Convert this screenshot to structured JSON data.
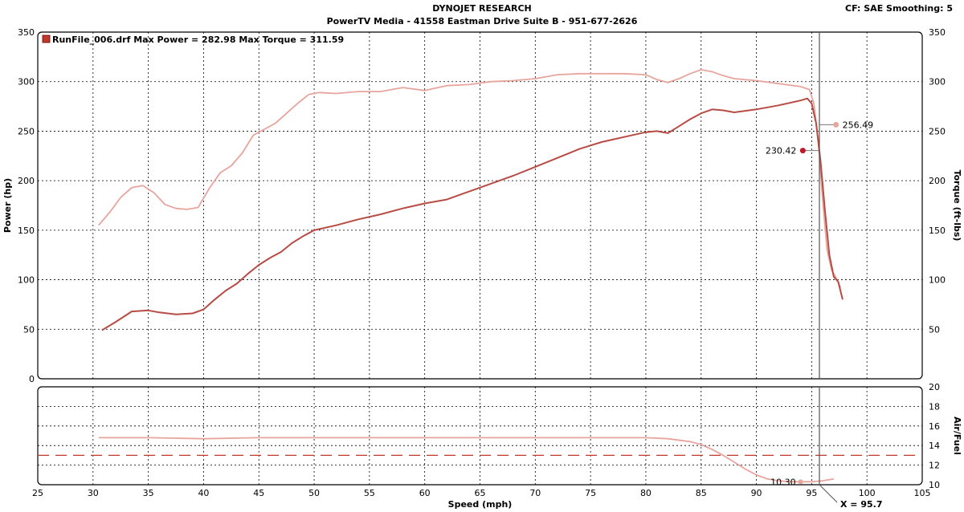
{
  "header": {
    "title": "DYNOJET RESEARCH",
    "subtitle": "PowerTV Media - 41558 Eastman Drive Suite B - 951-677-2626",
    "settings": "CF: SAE  Smoothing: 5"
  },
  "colors": {
    "power": "#b84c45",
    "torque": "#e8a59d",
    "afr": "#e8a59d",
    "afr_target": "#c0392b",
    "grid": "#000000",
    "cursor": "#555555"
  },
  "chart_data": [
    {
      "type": "line",
      "legend": "RunFile_006.drf Max Power = 282.98    Max Torque = 311.59",
      "xlabel": "Speed (mph)",
      "ylabel": "Power (hp)",
      "y2label": "Torque (ft-lbs)",
      "xlim": [
        25,
        105
      ],
      "ylim": [
        0,
        350
      ],
      "y2lim": [
        0,
        350
      ],
      "x_ticks": [
        25,
        30,
        35,
        40,
        45,
        50,
        55,
        60,
        65,
        70,
        75,
        80,
        85,
        90,
        95,
        100,
        105
      ],
      "y_ticks": [
        0,
        50,
        100,
        150,
        200,
        250,
        300,
        350
      ],
      "y2_ticks": [
        50,
        100,
        150,
        200,
        250,
        300
      ],
      "grid": true,
      "series": [
        {
          "name": "Power",
          "axis": "left",
          "x": [
            30.8,
            32,
            33.5,
            35,
            36,
            37.5,
            39,
            40,
            41,
            42,
            43,
            44,
            45,
            46,
            47,
            48,
            49,
            50,
            52,
            54,
            56,
            58,
            60,
            62,
            64,
            65,
            66,
            68,
            70,
            72,
            74,
            76,
            78,
            80,
            81,
            82,
            83,
            84,
            85,
            86,
            87,
            88,
            90,
            92,
            94,
            94.6,
            95,
            95.4,
            95.8,
            96.2,
            96.6,
            97,
            97.4,
            97.8
          ],
          "y": [
            49,
            57,
            68,
            69,
            67,
            65,
            66,
            70,
            80,
            89,
            96,
            106,
            115,
            122,
            128,
            137,
            144,
            150,
            155,
            161,
            166,
            172,
            177,
            181,
            189,
            193,
            197,
            205,
            214,
            223,
            232,
            239,
            244,
            249,
            250,
            248,
            255,
            262,
            268,
            272,
            271,
            269,
            272,
            276,
            281,
            283,
            278,
            258,
            220,
            170,
            125,
            103,
            98,
            80
          ]
        },
        {
          "name": "Torque",
          "axis": "right",
          "x": [
            30.5,
            31.5,
            32.5,
            33.5,
            34.5,
            35.5,
            36.5,
            37.5,
            38.5,
            39.5,
            40.5,
            41.5,
            42.5,
            43.5,
            44.5,
            45.5,
            46.5,
            47.5,
            48.5,
            49.5,
            50.5,
            52,
            54,
            56,
            58,
            60,
            62,
            64,
            66,
            68,
            70,
            72,
            74,
            76,
            78,
            80,
            81,
            82,
            83,
            84,
            85,
            86,
            87,
            88,
            90,
            92,
            94,
            94.8,
            95.2,
            95.6,
            96,
            96.4,
            96.8,
            97.2,
            97.6
          ],
          "y": [
            155,
            168,
            183,
            193,
            195,
            188,
            176,
            172,
            171,
            173,
            192,
            208,
            215,
            228,
            246,
            252,
            258,
            268,
            278,
            287,
            289,
            288,
            290,
            290,
            294,
            291,
            296,
            297,
            300,
            301,
            303,
            307,
            308,
            308,
            308,
            307,
            302,
            299,
            303,
            308,
            312,
            310,
            306,
            303,
            301,
            298,
            295,
            292,
            278,
            240,
            180,
            130,
            110,
            102,
            92
          ]
        }
      ],
      "markers": [
        {
          "series": "Power",
          "x": 94.2,
          "value": 230.42,
          "label": "230.42"
        },
        {
          "series": "Torque",
          "x": 97.2,
          "value": 256.49,
          "label": "256.49"
        }
      ],
      "cursor_x": 95.7,
      "cursor_label": "X = 95.7"
    },
    {
      "type": "line",
      "y2label": "Air/Fuel",
      "xlim": [
        25,
        105
      ],
      "y2lim": [
        10,
        20
      ],
      "y2_ticks": [
        10,
        12,
        14,
        16,
        18,
        20
      ],
      "grid": true,
      "target_afr": 13.0,
      "series": [
        {
          "name": "Air/Fuel",
          "x": [
            30.5,
            35,
            40,
            45,
            50,
            55,
            60,
            65,
            70,
            75,
            80,
            82,
            84,
            85,
            86,
            87,
            88,
            89,
            90,
            91,
            92,
            93,
            94,
            95,
            96,
            97
          ],
          "y": [
            14.8,
            14.8,
            14.7,
            14.8,
            14.8,
            14.8,
            14.8,
            14.8,
            14.8,
            14.8,
            14.8,
            14.7,
            14.4,
            14.1,
            13.6,
            13.0,
            12.3,
            11.6,
            11.0,
            10.6,
            10.4,
            10.3,
            10.3,
            10.3,
            10.4,
            10.6
          ]
        }
      ],
      "marker": {
        "x": 94,
        "value": 10.3,
        "label": "10.30"
      }
    }
  ]
}
